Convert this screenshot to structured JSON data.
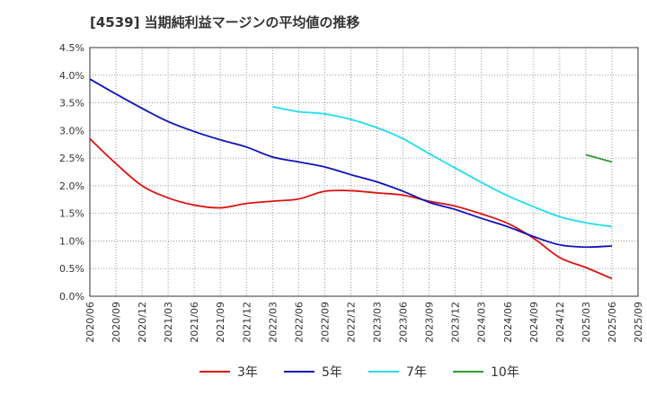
{
  "chart_data": {
    "type": "line",
    "title": "[4539]  当期純利益マージンの平均値の推移",
    "xlabel": "",
    "ylabel": "",
    "ylim": [
      0,
      0.045
    ],
    "y_ticks": [
      "0.0%",
      "0.5%",
      "1.0%",
      "1.5%",
      "2.0%",
      "2.5%",
      "3.0%",
      "3.5%",
      "4.0%",
      "4.5%"
    ],
    "x_ticks": [
      "2020/06",
      "2020/09",
      "2020/12",
      "2021/03",
      "2021/06",
      "2021/09",
      "2021/12",
      "2022/03",
      "2022/06",
      "2022/09",
      "2022/12",
      "2023/03",
      "2023/06",
      "2023/09",
      "2023/12",
      "2024/03",
      "2024/06",
      "2024/09",
      "2024/12",
      "2025/03",
      "2025/06",
      "2025/09"
    ],
    "grid": true,
    "legend_position": "bottom",
    "series": [
      {
        "name": "3年",
        "color": "#dd1111",
        "x": [
          "2020/06",
          "2020/09",
          "2020/12",
          "2021/03",
          "2021/06",
          "2021/09",
          "2021/12",
          "2022/03",
          "2022/06",
          "2022/09",
          "2022/12",
          "2023/03",
          "2023/06",
          "2023/09",
          "2023/12",
          "2024/03",
          "2024/06",
          "2024/09",
          "2024/12",
          "2025/03",
          "2025/06"
        ],
        "values": [
          0.0285,
          0.024,
          0.02,
          0.0178,
          0.0165,
          0.016,
          0.0168,
          0.0172,
          0.0176,
          0.019,
          0.0191,
          0.0187,
          0.0183,
          0.0172,
          0.0163,
          0.0149,
          0.0132,
          0.0105,
          0.007,
          0.0052,
          0.0032
        ]
      },
      {
        "name": "5年",
        "color": "#1111bb",
        "x": [
          "2020/06",
          "2020/09",
          "2020/12",
          "2021/03",
          "2021/06",
          "2021/09",
          "2021/12",
          "2022/03",
          "2022/06",
          "2022/09",
          "2022/12",
          "2023/03",
          "2023/06",
          "2023/09",
          "2023/12",
          "2024/03",
          "2024/06",
          "2024/09",
          "2024/12",
          "2025/03",
          "2025/06"
        ],
        "values": [
          0.0393,
          0.0366,
          0.034,
          0.0316,
          0.0298,
          0.0283,
          0.027,
          0.0252,
          0.0243,
          0.0234,
          0.022,
          0.0207,
          0.019,
          0.017,
          0.0157,
          0.0141,
          0.0126,
          0.0108,
          0.0093,
          0.0089,
          0.0091
        ]
      },
      {
        "name": "7年",
        "color": "#22ddee",
        "x": [
          "2022/03",
          "2022/06",
          "2022/09",
          "2022/12",
          "2023/03",
          "2023/06",
          "2023/09",
          "2023/12",
          "2024/03",
          "2024/06",
          "2024/09",
          "2024/12",
          "2025/03",
          "2025/06"
        ],
        "values": [
          0.0343,
          0.0334,
          0.033,
          0.032,
          0.0305,
          0.0285,
          0.0258,
          0.0232,
          0.0206,
          0.0182,
          0.0162,
          0.0144,
          0.0133,
          0.0126
        ]
      },
      {
        "name": "10年",
        "color": "#339933",
        "x": [
          "2025/03",
          "2025/06"
        ],
        "values": [
          0.0256,
          0.0243
        ]
      }
    ]
  }
}
